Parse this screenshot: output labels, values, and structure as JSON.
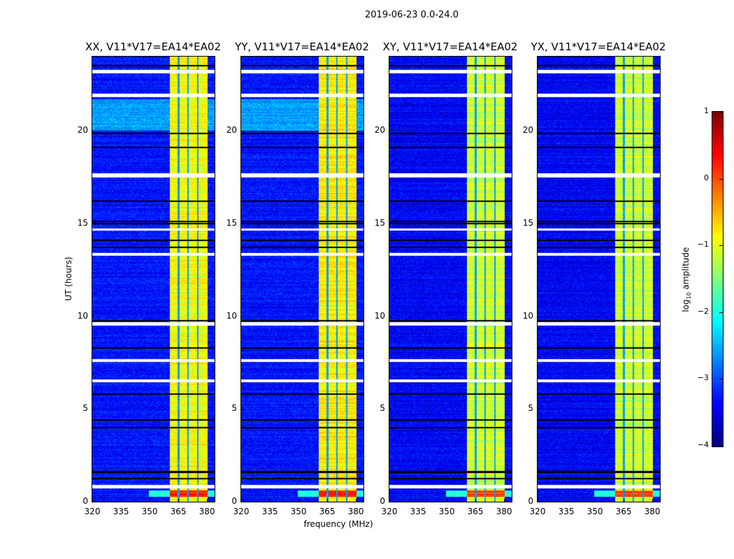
{
  "chart_data": {
    "type": "heatmap",
    "title": "2019-06-23 0.0-24.0",
    "xlabel": "frequency (MHz)",
    "ylabel": "UT (hours)",
    "xlim": [
      320,
      384
    ],
    "ylim": [
      0,
      24
    ],
    "xticks": [
      320,
      335,
      350,
      365,
      380
    ],
    "yticks": [
      0,
      5,
      10,
      15,
      20
    ],
    "panels": [
      {
        "title": "XX, V11*V17=EA14*EA02",
        "background_level": -3.3,
        "band_level": -0.9
      },
      {
        "title": "YY, V11*V17=EA14*EA02",
        "background_level": -3.3,
        "band_level": -0.8
      },
      {
        "title": "XY, V11*V17=EA14*EA02",
        "background_level": -3.4,
        "band_level": -1.1
      },
      {
        "title": "YX, V11*V17=EA14*EA02",
        "background_level": -3.4,
        "band_level": -1.1
      }
    ],
    "bright_band_mhz": [
      360.5,
      380
    ],
    "subband_edges_mhz": [
      365,
      370,
      375
    ],
    "flagged_ut_ranges": [
      [
        23.1,
        23.3
      ],
      [
        21.8,
        22.0
      ],
      [
        17.5,
        17.7
      ],
      [
        14.6,
        14.75
      ],
      [
        13.25,
        13.4
      ],
      [
        9.5,
        9.7
      ],
      [
        7.55,
        7.7
      ],
      [
        6.45,
        6.6
      ],
      [
        0.7,
        0.9
      ]
    ],
    "dropout_ut_hours": [
      23.5,
      19.85,
      19.1,
      16.2,
      15.1,
      15.0,
      14.1,
      13.7,
      9.75,
      8.3,
      5.8,
      4.4,
      4.0,
      1.6,
      1.25
    ],
    "elevated_ut_ranges": [
      [
        20.0,
        21.7
      ]
    ],
    "strong_ut_range": [
      0.25,
      0.6
    ],
    "colorbar": {
      "label_prefix": "log",
      "label_sub": "10",
      "label_suffix": " amplitude",
      "range": [
        -4,
        1
      ],
      "ticks": [
        "1",
        "0",
        "−1",
        "−2",
        "−3",
        "−4"
      ],
      "tick_values": [
        1,
        0,
        -1,
        -2,
        -3,
        -4
      ],
      "colormap": "jet"
    }
  }
}
